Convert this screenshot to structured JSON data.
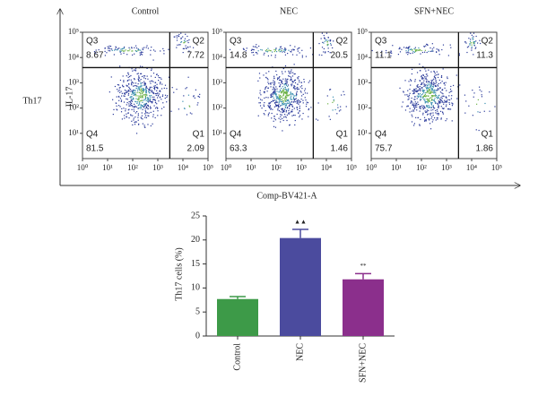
{
  "chart_data": [
    {
      "type": "flow",
      "title": "Control",
      "xlabel": "Comp-BV421-A",
      "ylabel": "IL-17",
      "group_label": "Th17",
      "log_scale": true,
      "xlim": [
        1,
        100000
      ],
      "ylim": [
        1,
        100000
      ],
      "xticks": [
        {
          "value": 1,
          "label": "10⁰"
        },
        {
          "value": 10,
          "label": "10¹"
        },
        {
          "value": 100,
          "label": "10²"
        },
        {
          "value": 1000,
          "label": "10³"
        },
        {
          "value": 10000,
          "label": "10⁴"
        },
        {
          "value": 100000,
          "label": "10⁵"
        }
      ],
      "yticks": [
        {
          "value": 10,
          "label": "10¹"
        },
        {
          "value": 100,
          "label": "10²"
        },
        {
          "value": 1000,
          "label": "10³"
        },
        {
          "value": 10000,
          "label": "10⁴"
        },
        {
          "value": 100000,
          "label": "10⁵"
        }
      ],
      "gate": {
        "x": 3000,
        "y": 4000
      },
      "quadrants": [
        {
          "name": "Q3",
          "corner": "top-left",
          "value": 8.67
        },
        {
          "name": "Q2",
          "corner": "top-right",
          "value": 7.72
        },
        {
          "name": "Q4",
          "corner": "bottom-left",
          "value": 81.5
        },
        {
          "name": "Q1",
          "corner": "bottom-right",
          "value": 2.09
        }
      ]
    },
    {
      "type": "flow",
      "title": "NEC",
      "log_scale": true,
      "xlim": [
        1,
        100000
      ],
      "ylim": [
        1,
        100000
      ],
      "xticks": [
        {
          "value": 1,
          "label": "10⁰"
        },
        {
          "value": 10,
          "label": "10¹"
        },
        {
          "value": 100,
          "label": "10²"
        },
        {
          "value": 1000,
          "label": "10³"
        },
        {
          "value": 10000,
          "label": "10⁴"
        },
        {
          "value": 100000,
          "label": "10⁵"
        }
      ],
      "yticks": [
        {
          "value": 10,
          "label": "10¹"
        },
        {
          "value": 100,
          "label": "10²"
        },
        {
          "value": 1000,
          "label": "10³"
        },
        {
          "value": 10000,
          "label": "10⁴"
        },
        {
          "value": 100000,
          "label": "10⁵"
        }
      ],
      "gate": {
        "x": 3000,
        "y": 4000
      },
      "quadrants": [
        {
          "name": "Q3",
          "corner": "top-left",
          "value": 14.8
        },
        {
          "name": "Q2",
          "corner": "top-right",
          "value": 20.5
        },
        {
          "name": "Q4",
          "corner": "bottom-left",
          "value": 63.3
        },
        {
          "name": "Q1",
          "corner": "bottom-right",
          "value": 1.46
        }
      ]
    },
    {
      "type": "flow",
      "title": "SFN+NEC",
      "log_scale": true,
      "xlim": [
        1,
        100000
      ],
      "ylim": [
        1,
        100000
      ],
      "xticks": [
        {
          "value": 1,
          "label": "10⁰"
        },
        {
          "value": 10,
          "label": "10¹"
        },
        {
          "value": 100,
          "label": "10²"
        },
        {
          "value": 1000,
          "label": "10³"
        },
        {
          "value": 10000,
          "label": "10⁴"
        },
        {
          "value": 100000,
          "label": "10⁵"
        }
      ],
      "yticks": [
        {
          "value": 10,
          "label": "10¹"
        },
        {
          "value": 100,
          "label": "10²"
        },
        {
          "value": 1000,
          "label": "10³"
        },
        {
          "value": 10000,
          "label": "10⁴"
        },
        {
          "value": 100000,
          "label": "10⁵"
        }
      ],
      "gate": {
        "x": 3000,
        "y": 4000
      },
      "quadrants": [
        {
          "name": "Q3",
          "corner": "top-left",
          "value": 11.1
        },
        {
          "name": "Q2",
          "corner": "top-right",
          "value": 11.3
        },
        {
          "name": "Q4",
          "corner": "bottom-left",
          "value": 75.7
        },
        {
          "name": "Q1",
          "corner": "bottom-right",
          "value": 1.86
        }
      ]
    },
    {
      "type": "bar",
      "ylabel": "Th17 cells (%)",
      "categories": [
        "Control",
        "NEC",
        "SFN+NEC"
      ],
      "values": [
        7.7,
        20.4,
        11.8
      ],
      "errors": [
        0.5,
        1.8,
        1.2
      ],
      "colors": [
        "#3d9a48",
        "#4b4b9e",
        "#8b2f8c"
      ],
      "annotations": [
        null,
        "▲▲",
        "**"
      ],
      "ylim": [
        0,
        25
      ],
      "yticks": [
        0,
        5,
        10,
        15,
        20,
        25
      ]
    }
  ]
}
